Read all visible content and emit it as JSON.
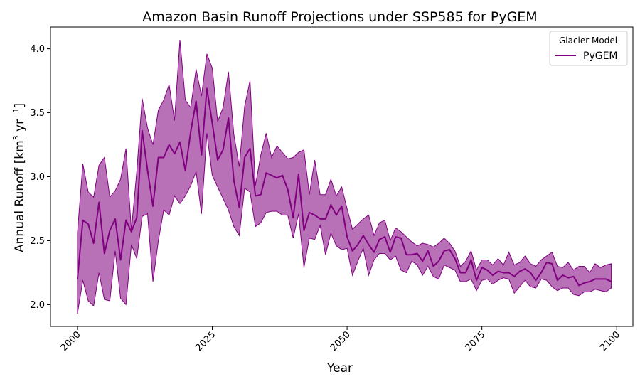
{
  "chart_data": {
    "type": "line",
    "title": "Amazon Basin Runoff Projections under SSP585 for PyGEM",
    "xlabel": "Year",
    "ylabel_main": "Annual Runoff [km",
    "ylabel_sup1": "3",
    "ylabel_mid": " yr",
    "ylabel_sup2": "−1",
    "ylabel_end": "]",
    "xlim": [
      1995,
      2103
    ],
    "ylim": [
      1.83,
      4.17
    ],
    "x_ticks": [
      2000,
      2025,
      2050,
      2075,
      2100
    ],
    "x_tick_labels": [
      "2000",
      "2025",
      "2050",
      "2075",
      "2100"
    ],
    "y_ticks": [
      2.0,
      2.5,
      3.0,
      3.5,
      4.0
    ],
    "y_tick_labels": [
      "2.0",
      "2.5",
      "3.0",
      "3.5",
      "4.0"
    ],
    "legend": {
      "title": "Glacier Model",
      "placement": "top-right"
    },
    "colors": {
      "line": "#800080",
      "band": "#a0409f"
    },
    "series": [
      {
        "name": "PyGEM",
        "x": [
          2000,
          2001,
          2002,
          2003,
          2004,
          2005,
          2006,
          2007,
          2008,
          2009,
          2010,
          2011,
          2012,
          2013,
          2014,
          2015,
          2016,
          2017,
          2018,
          2019,
          2020,
          2021,
          2022,
          2023,
          2024,
          2025,
          2026,
          2027,
          2028,
          2029,
          2030,
          2031,
          2032,
          2033,
          2034,
          2035,
          2036,
          2037,
          2038,
          2039,
          2040,
          2041,
          2042,
          2043,
          2044,
          2045,
          2046,
          2047,
          2048,
          2049,
          2050,
          2051,
          2052,
          2053,
          2054,
          2055,
          2056,
          2057,
          2058,
          2059,
          2060,
          2061,
          2062,
          2063,
          2064,
          2065,
          2066,
          2067,
          2068,
          2069,
          2070,
          2071,
          2072,
          2073,
          2074,
          2075,
          2076,
          2077,
          2078,
          2079,
          2080,
          2081,
          2082,
          2083,
          2084,
          2085,
          2086,
          2087,
          2088,
          2089,
          2090,
          2091,
          2092,
          2093,
          2094,
          2095,
          2096,
          2097,
          2098,
          2099
        ],
        "values": [
          2.2,
          2.66,
          2.63,
          2.48,
          2.8,
          2.4,
          2.58,
          2.67,
          2.35,
          2.66,
          2.57,
          2.68,
          3.36,
          3.05,
          2.77,
          3.15,
          3.15,
          3.25,
          3.18,
          3.27,
          3.05,
          3.35,
          3.59,
          3.17,
          3.69,
          3.42,
          3.13,
          3.21,
          3.46,
          2.97,
          2.76,
          3.15,
          3.22,
          2.85,
          2.86,
          3.03,
          3.01,
          2.99,
          3.01,
          2.9,
          2.68,
          3.02,
          2.58,
          2.72,
          2.7,
          2.67,
          2.67,
          2.78,
          2.7,
          2.77,
          2.53,
          2.42,
          2.47,
          2.54,
          2.47,
          2.41,
          2.51,
          2.53,
          2.41,
          2.53,
          2.52,
          2.39,
          2.39,
          2.4,
          2.34,
          2.42,
          2.3,
          2.34,
          2.42,
          2.43,
          2.36,
          2.25,
          2.25,
          2.35,
          2.19,
          2.29,
          2.27,
          2.23,
          2.26,
          2.25,
          2.25,
          2.22,
          2.26,
          2.28,
          2.25,
          2.19,
          2.25,
          2.33,
          2.32,
          2.19,
          2.23,
          2.21,
          2.22,
          2.15,
          2.17,
          2.18,
          2.2,
          2.2,
          2.2,
          2.18
        ],
        "upper": [
          2.56,
          3.1,
          2.88,
          2.84,
          3.09,
          3.15,
          2.84,
          2.89,
          2.98,
          3.22,
          2.58,
          3.04,
          3.61,
          3.38,
          3.25,
          3.52,
          3.6,
          3.72,
          3.44,
          4.07,
          3.6,
          3.54,
          3.84,
          3.63,
          3.96,
          3.85,
          3.43,
          3.54,
          3.82,
          3.33,
          3.08,
          3.55,
          3.75,
          2.93,
          3.17,
          3.34,
          3.15,
          3.24,
          3.19,
          3.14,
          3.15,
          3.19,
          3.21,
          2.86,
          3.13,
          2.86,
          2.86,
          2.98,
          2.85,
          2.92,
          2.75,
          2.59,
          2.63,
          2.67,
          2.7,
          2.54,
          2.64,
          2.66,
          2.5,
          2.6,
          2.57,
          2.53,
          2.49,
          2.46,
          2.48,
          2.47,
          2.45,
          2.48,
          2.52,
          2.48,
          2.42,
          2.3,
          2.34,
          2.42,
          2.27,
          2.35,
          2.35,
          2.31,
          2.36,
          2.31,
          2.41,
          2.31,
          2.33,
          2.38,
          2.32,
          2.3,
          2.35,
          2.38,
          2.41,
          2.3,
          2.29,
          2.33,
          2.27,
          2.3,
          2.3,
          2.25,
          2.32,
          2.29,
          2.31,
          2.32
        ],
        "lower": [
          1.93,
          2.19,
          2.03,
          1.99,
          2.25,
          2.04,
          2.03,
          2.42,
          2.05,
          2.0,
          2.47,
          2.36,
          2.69,
          2.71,
          2.18,
          2.5,
          2.74,
          2.7,
          2.85,
          2.79,
          2.85,
          2.93,
          3.04,
          2.71,
          3.34,
          3.01,
          2.92,
          2.83,
          2.74,
          2.61,
          2.54,
          2.91,
          2.88,
          2.61,
          2.64,
          2.72,
          2.73,
          2.73,
          2.7,
          2.7,
          2.52,
          2.71,
          2.29,
          2.52,
          2.51,
          2.62,
          2.39,
          2.56,
          2.46,
          2.43,
          2.44,
          2.23,
          2.34,
          2.44,
          2.23,
          2.35,
          2.4,
          2.4,
          2.35,
          2.38,
          2.27,
          2.25,
          2.34,
          2.31,
          2.23,
          2.3,
          2.22,
          2.2,
          2.31,
          2.29,
          2.27,
          2.18,
          2.18,
          2.2,
          2.11,
          2.19,
          2.2,
          2.16,
          2.19,
          2.21,
          2.2,
          2.09,
          2.14,
          2.19,
          2.14,
          2.13,
          2.2,
          2.19,
          2.14,
          2.11,
          2.13,
          2.13,
          2.08,
          2.07,
          2.1,
          2.1,
          2.12,
          2.11,
          2.1,
          2.13
        ]
      }
    ]
  }
}
